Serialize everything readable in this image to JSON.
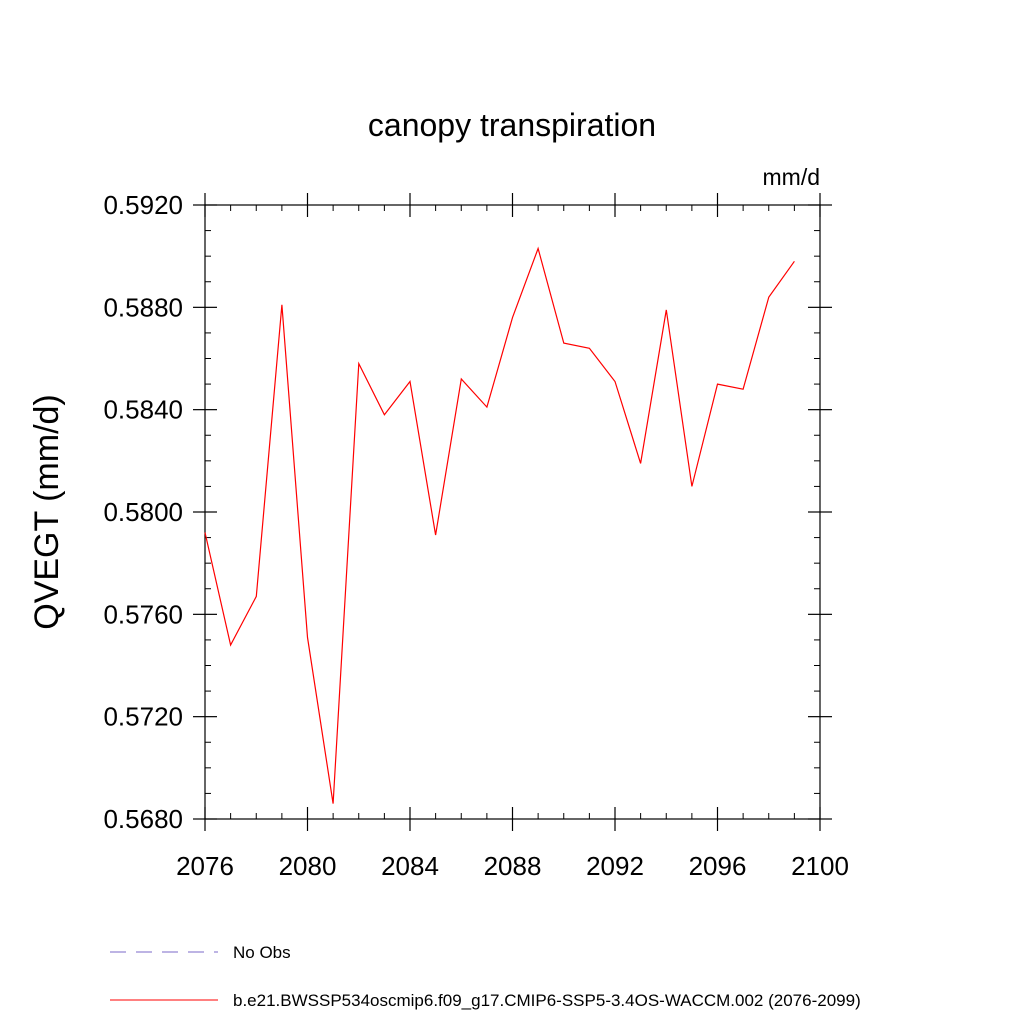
{
  "chart_data": {
    "type": "line",
    "title": "canopy transpiration",
    "units_label": "mm/d",
    "ylabel": "QVEGT  (mm/d)",
    "xlabel": "",
    "xlim": [
      2076,
      2100
    ],
    "ylim": [
      0.568,
      0.592
    ],
    "x_ticks": [
      2076,
      2080,
      2084,
      2088,
      2092,
      2096,
      2100
    ],
    "x_tick_labels": [
      "2076",
      "2080",
      "2084",
      "2088",
      "2092",
      "2096",
      "2100"
    ],
    "y_ticks": [
      0.568,
      0.572,
      0.576,
      0.58,
      0.584,
      0.588,
      0.592
    ],
    "y_tick_labels": [
      "0.5680",
      "0.5720",
      "0.5760",
      "0.5800",
      "0.5840",
      "0.5880",
      "0.5920"
    ],
    "grid": false,
    "legend_position": "bottom",
    "series": [
      {
        "name": "No Obs",
        "color": "#7b68c8",
        "dash": "dashed",
        "x": [],
        "y": []
      },
      {
        "name": "b.e21.BWSSP534oscmip6.f09_g17.CMIP6-SSP5-3.4OS-WACCM.002 (2076-2099)",
        "color": "#ff0000",
        "dash": "solid",
        "x": [
          2076,
          2077,
          2078,
          2079,
          2080,
          2081,
          2082,
          2083,
          2084,
          2085,
          2086,
          2087,
          2088,
          2089,
          2090,
          2091,
          2092,
          2093,
          2094,
          2095,
          2096,
          2097,
          2098,
          2099
        ],
        "y": [
          0.5792,
          0.5748,
          0.5767,
          0.5881,
          0.5751,
          0.5686,
          0.5858,
          0.5838,
          0.5851,
          0.5791,
          0.5852,
          0.5841,
          0.5876,
          0.5903,
          0.5866,
          0.5864,
          0.5851,
          0.5819,
          0.5879,
          0.581,
          0.585,
          0.5848,
          0.5884,
          0.5898
        ]
      }
    ]
  }
}
